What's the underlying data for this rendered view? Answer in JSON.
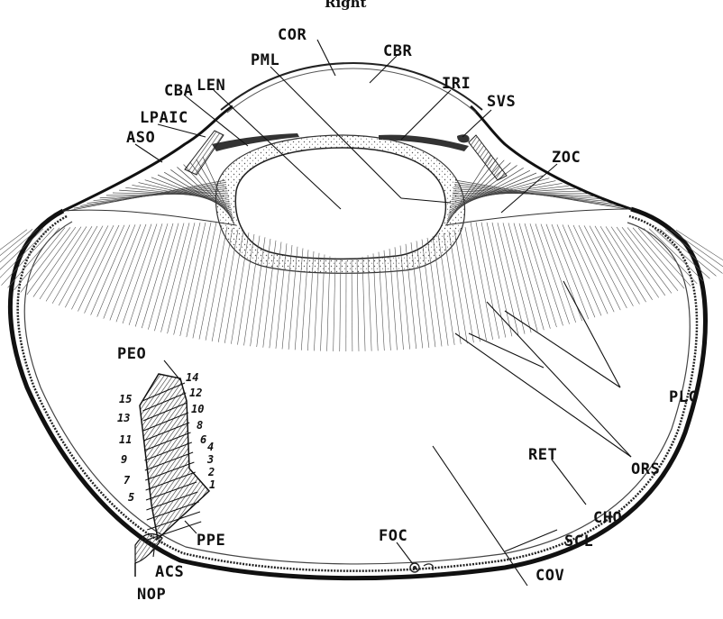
{
  "figure": {
    "caption_top": "Right",
    "labels": {
      "COR": "COR",
      "CBR": "CBR",
      "PML": "PML",
      "LEN": "LEN",
      "CBA": "CBA",
      "IRI": "IRI",
      "SVS": "SVS",
      "LPAIC": "LPAIC",
      "ASO": "ASO",
      "ZOC": "ZOC",
      "PLC": "PLC",
      "ORS": "ORS",
      "RET": "RET",
      "CHO": "CHO",
      "SCL": "SCL",
      "COV": "COV",
      "FOC": "FOC",
      "PEO": "PEO",
      "PPE": "PPE",
      "ACS": "ACS",
      "NOP": "NOP"
    },
    "pecten_numbers": {
      "n1": "1",
      "n2": "2",
      "n3": "3",
      "n4": "4",
      "n5": "5",
      "n6": "6",
      "n7": "7",
      "n8": "8",
      "n9": "9",
      "n10": "10",
      "n11": "11",
      "n12": "12",
      "n13": "13",
      "n14": "14",
      "n15": "15"
    }
  }
}
